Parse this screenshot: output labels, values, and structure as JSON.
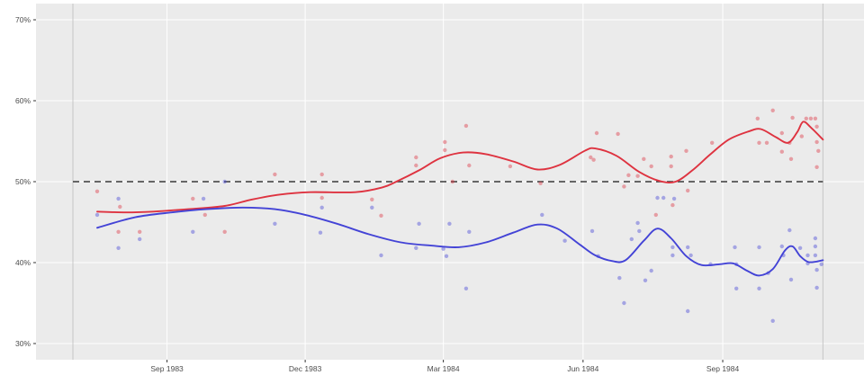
{
  "chart_data": {
    "type": "scatter",
    "title": "",
    "description": "Polling percentages July 1983 - November 1984; red and blue poll scatter points with loess trend lines, dashed 50% reference line, vertical lines at campaign start and election day",
    "legend": "none",
    "grid": "on",
    "x_axis": {
      "range": [
        "1983-06-07",
        "1984-12-03"
      ],
      "ticks": [
        {
          "label": "Sep 1983",
          "date": "1983-09-01"
        },
        {
          "label": "Dec 1983",
          "date": "1983-12-01"
        },
        {
          "label": "Mar 1984",
          "date": "1984-03-01"
        },
        {
          "label": "Jun 1984",
          "date": "1984-06-01"
        },
        {
          "label": "Sep 1984",
          "date": "1984-09-01"
        }
      ]
    },
    "y_axis": {
      "range": [
        28,
        72
      ],
      "unit": "%",
      "ticks": [
        {
          "label": "70%",
          "value": 70
        },
        {
          "label": "60%",
          "value": 60
        },
        {
          "label": "50%",
          "value": 50
        },
        {
          "label": "40%",
          "value": 40
        },
        {
          "label": "30%",
          "value": 30
        }
      ]
    },
    "reference_lines": {
      "dashed_horizontal": {
        "value": 50,
        "from": "1983-07-01",
        "to": "1984-11-06"
      },
      "vertical": [
        {
          "name": "campaign-start",
          "date": "1983-07-01"
        },
        {
          "name": "election-day",
          "date": "1984-11-06"
        }
      ]
    },
    "colors": {
      "outer_bg": "#ffffff",
      "panel_bg": "#ebebeb",
      "grid": "#ffffff",
      "axis_text": "#4d4d4d",
      "tick_mark": "#333333",
      "dashed_line": "#3a3a3a",
      "vline": "#c6c6c6",
      "red": "#DE3340",
      "blue": "#4343D6"
    },
    "series": [
      {
        "name": "red-series",
        "color": "#DE3340",
        "points": [
          [
            "1983-07-17",
            48.8
          ],
          [
            "1983-08-01",
            46.9
          ],
          [
            "1983-07-31",
            43.8
          ],
          [
            "1983-08-14",
            43.8
          ],
          [
            "1983-09-18",
            47.9
          ],
          [
            "1983-09-26",
            45.9
          ],
          [
            "1983-10-09",
            43.8
          ],
          [
            "1983-11-11",
            50.9
          ],
          [
            "1983-12-12",
            50.9
          ],
          [
            "1983-12-12",
            48.0
          ],
          [
            "1984-01-14",
            47.8
          ],
          [
            "1984-01-20",
            45.8
          ],
          [
            "1984-02-12",
            53.0
          ],
          [
            "1984-02-12",
            52.0
          ],
          [
            "1984-03-07",
            50.0
          ],
          [
            "1984-03-02",
            54.9
          ],
          [
            "1984-03-02",
            53.9
          ],
          [
            "1984-03-16",
            56.9
          ],
          [
            "1984-03-18",
            52.0
          ],
          [
            "1984-04-14",
            51.9
          ],
          [
            "1984-05-04",
            49.8
          ],
          [
            "1984-06-06",
            53.0
          ],
          [
            "1984-06-10",
            56.0
          ],
          [
            "1984-06-24",
            55.9
          ],
          [
            "1984-06-08",
            52.7
          ],
          [
            "1984-06-28",
            49.4
          ],
          [
            "1984-07-01",
            50.8
          ],
          [
            "1984-07-07",
            50.7
          ],
          [
            "1984-07-11",
            52.8
          ],
          [
            "1984-07-16",
            51.9
          ],
          [
            "1984-07-19",
            45.9
          ],
          [
            "1984-07-29",
            53.1
          ],
          [
            "1984-07-29",
            51.9
          ],
          [
            "1984-07-30",
            47.1
          ],
          [
            "1984-08-08",
            53.8
          ],
          [
            "1984-08-09",
            48.9
          ],
          [
            "1984-08-25",
            54.8
          ],
          [
            "1984-09-24",
            57.8
          ],
          [
            "1984-10-04",
            58.8
          ],
          [
            "1984-09-25",
            54.8
          ],
          [
            "1984-09-30",
            54.8
          ],
          [
            "1984-10-10",
            56.0
          ],
          [
            "1984-10-10",
            53.7
          ],
          [
            "1984-10-15",
            54.8
          ],
          [
            "1984-10-16",
            52.8
          ],
          [
            "1984-10-17",
            57.9
          ],
          [
            "1984-10-23",
            55.6
          ],
          [
            "1984-10-26",
            57.8
          ],
          [
            "1984-10-29",
            57.8
          ],
          [
            "1984-11-01",
            57.8
          ],
          [
            "1984-11-02",
            56.8
          ],
          [
            "1984-11-02",
            54.9
          ],
          [
            "1984-11-03",
            53.8
          ],
          [
            "1984-11-02",
            51.8
          ]
        ],
        "trend": [
          [
            "1983-07-17",
            46.3
          ],
          [
            "1983-08-05",
            46.2
          ],
          [
            "1983-08-23",
            46.3
          ],
          [
            "1983-09-15",
            46.6
          ],
          [
            "1983-10-09",
            47.0
          ],
          [
            "1983-10-27",
            47.8
          ],
          [
            "1983-11-14",
            48.4
          ],
          [
            "1983-12-04",
            48.7
          ],
          [
            "1984-01-03",
            48.7
          ],
          [
            "1984-01-21",
            49.3
          ],
          [
            "1984-01-30",
            50.0
          ],
          [
            "1984-02-14",
            51.4
          ],
          [
            "1984-02-28",
            52.9
          ],
          [
            "1984-03-14",
            53.6
          ],
          [
            "1984-03-29",
            53.4
          ],
          [
            "1984-04-16",
            52.5
          ],
          [
            "1984-05-02",
            51.5
          ],
          [
            "1984-05-17",
            52.1
          ],
          [
            "1984-06-02",
            53.8
          ],
          [
            "1984-06-09",
            54.1
          ],
          [
            "1984-06-23",
            53.2
          ],
          [
            "1984-07-08",
            51.2
          ],
          [
            "1984-07-21",
            50.1
          ],
          [
            "1984-08-01",
            50.0
          ],
          [
            "1984-08-12",
            51.4
          ],
          [
            "1984-08-24",
            53.4
          ],
          [
            "1984-09-05",
            55.2
          ],
          [
            "1984-09-18",
            56.2
          ],
          [
            "1984-09-26",
            56.5
          ],
          [
            "1984-10-06",
            55.5
          ],
          [
            "1984-10-14",
            54.8
          ],
          [
            "1984-10-20",
            56.1
          ],
          [
            "1984-10-24",
            57.4
          ],
          [
            "1984-10-29",
            56.7
          ],
          [
            "1984-11-06",
            55.2
          ]
        ]
      },
      {
        "name": "blue-series",
        "color": "#4343D6",
        "points": [
          [
            "1983-07-17",
            45.9
          ],
          [
            "1983-07-31",
            47.9
          ],
          [
            "1983-07-31",
            41.8
          ],
          [
            "1983-08-14",
            42.9
          ],
          [
            "1983-09-25",
            47.9
          ],
          [
            "1983-09-18",
            43.8
          ],
          [
            "1983-10-09",
            50.0
          ],
          [
            "1983-11-11",
            44.8
          ],
          [
            "1983-12-12",
            46.8
          ],
          [
            "1983-12-11",
            43.7
          ],
          [
            "1984-01-14",
            46.8
          ],
          [
            "1984-01-20",
            40.9
          ],
          [
            "1984-02-14",
            44.8
          ],
          [
            "1984-02-12",
            41.8
          ],
          [
            "1984-03-01",
            41.7
          ],
          [
            "1984-03-03",
            40.8
          ],
          [
            "1984-03-05",
            44.8
          ],
          [
            "1984-03-18",
            43.8
          ],
          [
            "1984-03-16",
            36.8
          ],
          [
            "1984-05-05",
            45.9
          ],
          [
            "1984-05-20",
            42.7
          ],
          [
            "1984-06-07",
            43.9
          ],
          [
            "1984-06-11",
            40.8
          ],
          [
            "1984-06-25",
            38.1
          ],
          [
            "1984-06-28",
            35.0
          ],
          [
            "1984-07-03",
            42.9
          ],
          [
            "1984-07-07",
            44.9
          ],
          [
            "1984-07-08",
            43.9
          ],
          [
            "1984-07-12",
            37.8
          ],
          [
            "1984-07-16",
            39.0
          ],
          [
            "1984-07-20",
            48.0
          ],
          [
            "1984-07-24",
            48.0
          ],
          [
            "1984-07-31",
            47.9
          ],
          [
            "1984-07-30",
            41.9
          ],
          [
            "1984-07-30",
            40.9
          ],
          [
            "1984-08-09",
            41.9
          ],
          [
            "1984-08-11",
            40.9
          ],
          [
            "1984-08-09",
            34.0
          ],
          [
            "1984-08-24",
            39.8
          ],
          [
            "1984-09-09",
            41.9
          ],
          [
            "1984-09-10",
            39.8
          ],
          [
            "1984-09-10",
            36.8
          ],
          [
            "1984-09-25",
            41.9
          ],
          [
            "1984-09-25",
            36.8
          ],
          [
            "1984-10-01",
            38.7
          ],
          [
            "1984-10-04",
            32.8
          ],
          [
            "1984-10-10",
            42.0
          ],
          [
            "1984-10-11",
            40.9
          ],
          [
            "1984-10-15",
            44.0
          ],
          [
            "1984-10-16",
            37.9
          ],
          [
            "1984-10-22",
            41.8
          ],
          [
            "1984-10-27",
            40.9
          ],
          [
            "1984-10-27",
            39.9
          ],
          [
            "1984-11-01",
            43.0
          ],
          [
            "1984-11-01",
            42.0
          ],
          [
            "1984-11-01",
            40.9
          ],
          [
            "1984-11-02",
            39.1
          ],
          [
            "1984-11-02",
            36.9
          ],
          [
            "1984-11-05",
            39.8
          ]
        ],
        "trend": [
          [
            "1983-07-17",
            44.3
          ],
          [
            "1983-08-11",
            45.6
          ],
          [
            "1983-09-04",
            46.2
          ],
          [
            "1983-09-27",
            46.6
          ],
          [
            "1983-10-21",
            46.8
          ],
          [
            "1983-11-11",
            46.6
          ],
          [
            "1983-12-01",
            45.9
          ],
          [
            "1983-12-22",
            44.8
          ],
          [
            "1984-01-12",
            43.5
          ],
          [
            "1984-02-02",
            42.5
          ],
          [
            "1984-02-22",
            42.1
          ],
          [
            "1984-03-11",
            41.9
          ],
          [
            "1984-03-29",
            42.5
          ],
          [
            "1984-04-16",
            43.7
          ],
          [
            "1984-05-02",
            44.7
          ],
          [
            "1984-05-15",
            44.2
          ],
          [
            "1984-05-30",
            42.2
          ],
          [
            "1984-06-09",
            40.9
          ],
          [
            "1984-06-20",
            40.2
          ],
          [
            "1984-06-29",
            40.3
          ],
          [
            "1984-07-11",
            42.7
          ],
          [
            "1984-07-20",
            44.2
          ],
          [
            "1984-07-29",
            43.0
          ],
          [
            "1984-08-08",
            40.8
          ],
          [
            "1984-08-18",
            39.7
          ],
          [
            "1984-08-30",
            39.8
          ],
          [
            "1984-09-08",
            39.9
          ],
          [
            "1984-09-17",
            39.0
          ],
          [
            "1984-09-25",
            38.4
          ],
          [
            "1984-10-04",
            39.2
          ],
          [
            "1984-10-12",
            41.5
          ],
          [
            "1984-10-17",
            42.0
          ],
          [
            "1984-10-22",
            40.8
          ],
          [
            "1984-10-27",
            40.1
          ],
          [
            "1984-11-01",
            40.1
          ],
          [
            "1984-11-06",
            40.3
          ]
        ]
      }
    ]
  }
}
